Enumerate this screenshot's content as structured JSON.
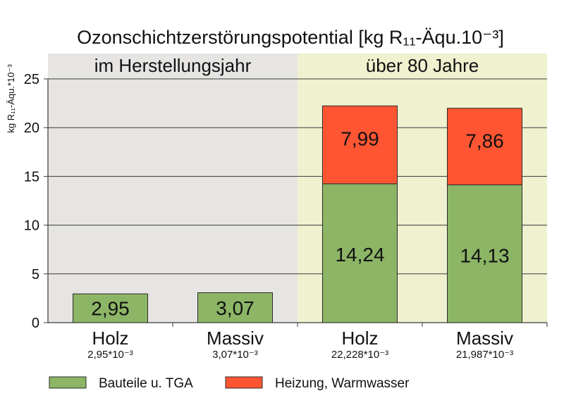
{
  "chart_data": {
    "type": "bar",
    "stacked": true,
    "title": "Ozonschichtzerstörungspotential [kg R₁₁-Äqu.10⁻³]",
    "ylabel": "kg R₁₁-Äqu.*10⁻³",
    "xlabel": "",
    "ylim": [
      0,
      25
    ],
    "yticks": [
      0,
      5,
      10,
      15,
      20,
      25
    ],
    "grid": true,
    "regions": [
      {
        "label": "im Herstellungsjahr",
        "categories": [
          0,
          1
        ],
        "color": "#e6e5e3"
      },
      {
        "label": "über 80 Jahre",
        "categories": [
          2,
          3
        ],
        "color": "#eff1cf"
      }
    ],
    "categories": [
      "Holz",
      "Massiv",
      "Holz",
      "Massiv"
    ],
    "category_sublabels": [
      "2,95*10⁻³",
      "3,07*10⁻³",
      "22,228*10⁻³",
      "21,987*10⁻³"
    ],
    "series": [
      {
        "name": "Bauteile u. TGA",
        "color": "#8cb566",
        "values": [
          2.95,
          3.07,
          14.24,
          14.13
        ],
        "labels": [
          "2,95",
          "3,07",
          "14,24",
          "14,13"
        ]
      },
      {
        "name": "Heizung, Warmwasser",
        "color": "#ff5533",
        "values": [
          0,
          0,
          7.99,
          7.86
        ],
        "labels": [
          "",
          "",
          "7,99",
          "7,86"
        ]
      }
    ],
    "legend_position": "bottom-left"
  }
}
